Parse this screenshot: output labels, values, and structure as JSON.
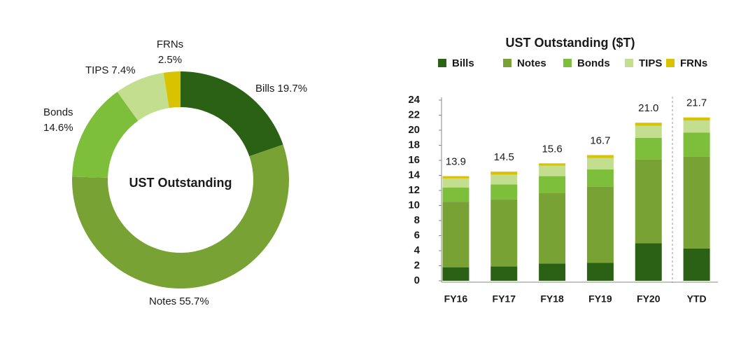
{
  "chart_data": [
    {
      "type": "pie",
      "center_label": "UST Outstanding",
      "categories": [
        "Bills",
        "Notes",
        "Bonds",
        "TIPS",
        "FRNs"
      ],
      "values": [
        19.7,
        55.7,
        14.6,
        7.4,
        2.5
      ],
      "value_labels": [
        "19.7%",
        "55.7%",
        "14.6%",
        "7.4%",
        "2.5%"
      ],
      "colors": [
        "#2a6114",
        "#78a234",
        "#7dbe3b",
        "#c4de8f",
        "#d9c300"
      ]
    },
    {
      "type": "stacked-bar",
      "title": "UST Outstanding ($T)",
      "categories": [
        "FY16",
        "FY17",
        "FY18",
        "FY19",
        "FY20",
        "YTD"
      ],
      "series": [
        {
          "name": "Bills",
          "color": "#2a6114",
          "values": [
            1.8,
            1.9,
            2.3,
            2.4,
            5.0,
            4.3
          ]
        },
        {
          "name": "Notes",
          "color": "#78a234",
          "values": [
            8.7,
            8.9,
            9.4,
            10.1,
            11.1,
            12.2
          ]
        },
        {
          "name": "Bonds",
          "color": "#7dbe3b",
          "values": [
            1.9,
            2.0,
            2.2,
            2.3,
            2.9,
            3.2
          ]
        },
        {
          "name": "TIPS",
          "color": "#c4de8f",
          "values": [
            1.2,
            1.3,
            1.4,
            1.5,
            1.6,
            1.6
          ]
        },
        {
          "name": "FRNs",
          "color": "#d9c300",
          "values": [
            0.3,
            0.4,
            0.3,
            0.4,
            0.4,
            0.4
          ]
        }
      ],
      "totals": [
        13.9,
        14.5,
        15.6,
        16.7,
        21.0,
        21.7
      ],
      "total_labels": [
        "13.9",
        "14.5",
        "15.6",
        "16.7",
        "21.0",
        "21.7"
      ],
      "ylim": [
        0,
        24
      ],
      "yticks": [
        0,
        2,
        4,
        6,
        8,
        10,
        12,
        14,
        16,
        18,
        20,
        22,
        24
      ],
      "grid": false
    }
  ]
}
